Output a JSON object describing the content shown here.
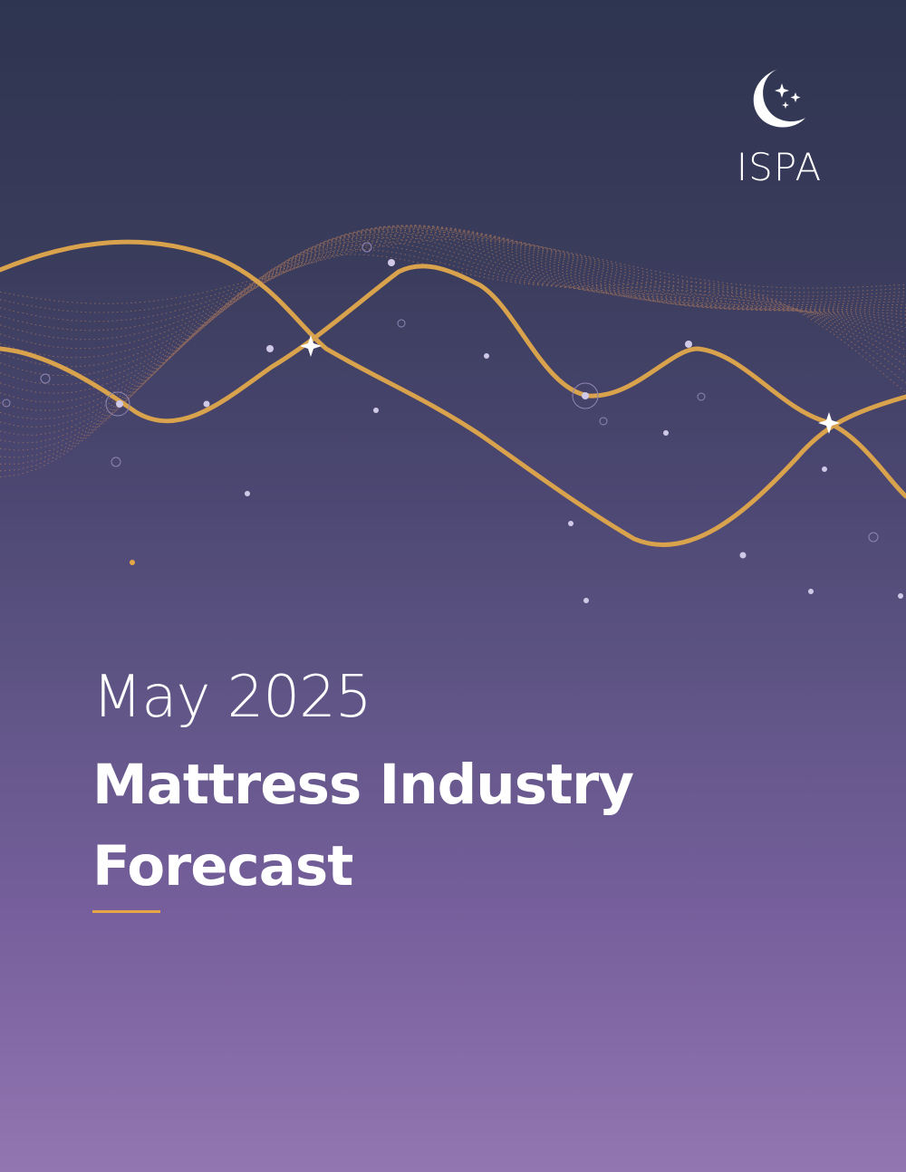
{
  "brand": {
    "name": "ISPA",
    "accent_color": "#e6a645",
    "logo_icon": "crescent-moon-stars-icon"
  },
  "cover": {
    "date": "May 2025",
    "title_line1": "Mattress Industry",
    "title_line2": "Forecast"
  },
  "colors": {
    "background_top": "#2e3550",
    "background_bottom": "#9276b2",
    "wave_gold": "#d9a24c",
    "dots": "#cfc8e6"
  }
}
